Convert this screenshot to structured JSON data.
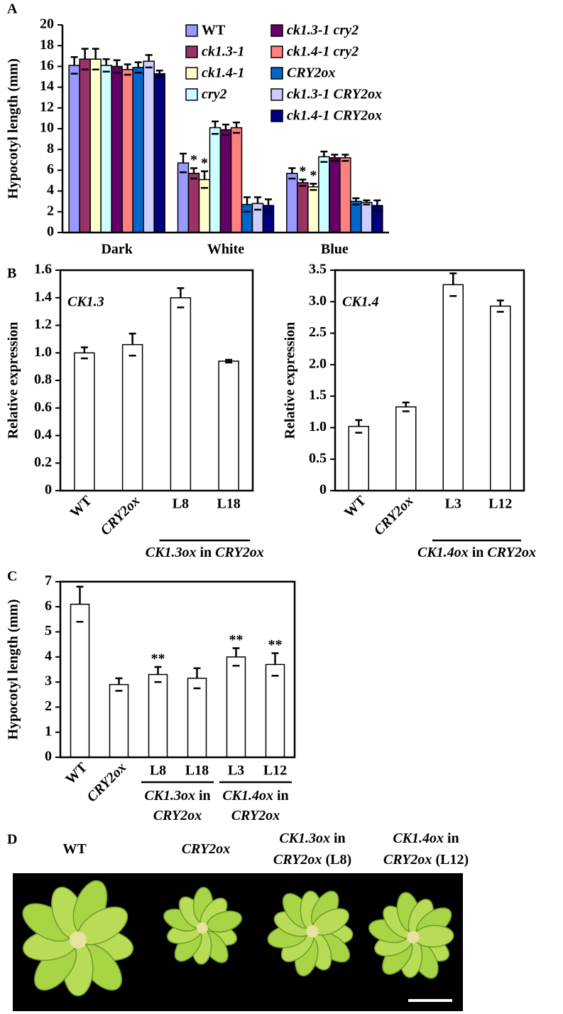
{
  "panels": [
    "A",
    "B",
    "C",
    "D"
  ],
  "chart_data": [
    {
      "type": "bar",
      "y_label": "Hypocotyl length (mm)",
      "categories": [
        "Dark",
        "White",
        "Blue"
      ],
      "ylim": [
        0,
        20
      ],
      "yticks": [
        0,
        2,
        4,
        6,
        8,
        10,
        12,
        14,
        16,
        18,
        20
      ],
      "series": [
        {
          "name": "WT",
          "italic": false,
          "color": "#9999ff",
          "values": [
            16.1,
            6.7,
            5.7
          ],
          "errors": [
            0.8,
            0.9,
            0.5
          ]
        },
        {
          "name": "ck1.3-1",
          "italic": true,
          "color": "#993366",
          "values": [
            16.7,
            5.7,
            4.8
          ],
          "errors": [
            1.0,
            0.5,
            0.3
          ],
          "significance": [
            null,
            "*",
            "*"
          ]
        },
        {
          "name": "ck1.4-1",
          "italic": true,
          "color": "#ffffcc",
          "values": [
            16.7,
            5.1,
            4.4
          ],
          "errors": [
            1.0,
            0.8,
            0.3
          ],
          "significance": [
            null,
            "*",
            "*"
          ]
        },
        {
          "name": "cry2",
          "italic": true,
          "color": "#ccffff",
          "values": [
            16.1,
            10.1,
            7.3
          ],
          "errors": [
            0.6,
            0.6,
            0.5
          ]
        },
        {
          "name": "ck1.3-1 cry2",
          "italic": true,
          "color": "#660066",
          "values": [
            16.0,
            9.9,
            7.2
          ],
          "errors": [
            0.6,
            0.5,
            0.3
          ]
        },
        {
          "name": "ck1.4-1 cry2",
          "italic": true,
          "color": "#ff8080",
          "values": [
            15.7,
            10.1,
            7.2
          ],
          "errors": [
            0.5,
            0.5,
            0.3
          ]
        },
        {
          "name": "CRY2ox",
          "italic": true,
          "color": "#0066cc",
          "values": [
            15.9,
            2.7,
            3.0
          ],
          "errors": [
            0.5,
            0.7,
            0.3
          ]
        },
        {
          "name": "ck1.3-1 CRY2ox",
          "italic": true,
          "color": "#ccccff",
          "values": [
            16.5,
            2.8,
            2.9
          ],
          "errors": [
            0.6,
            0.6,
            0.2
          ]
        },
        {
          "name": "ck1.4-1 CRY2ox",
          "italic": true,
          "color": "#000080",
          "values": [
            15.3,
            2.6,
            2.6
          ],
          "errors": [
            0.3,
            0.6,
            0.5
          ]
        }
      ]
    },
    {
      "type": "bar",
      "y_label": "Relative expression",
      "inner_label": "CK1.3",
      "categories": [
        "WT",
        "CRY2ox",
        "L8",
        "L18"
      ],
      "category_italic": [
        false,
        true,
        false,
        false
      ],
      "values": [
        1.0,
        1.06,
        1.4,
        0.94
      ],
      "errors": [
        0.04,
        0.08,
        0.07,
        0.01
      ],
      "color": "#ffffff",
      "ylim": [
        0,
        1.6
      ],
      "yticks": [
        0,
        0.2,
        0.4,
        0.6,
        0.8,
        {
          "value": 1,
          "label": "1.0"
        },
        1.2,
        1.4,
        1.6
      ],
      "groups": [
        {
          "label": [
            [
              {
                "text": "CK1.3ox",
                "italic": true
              },
              {
                "text": "in",
                "italic": false
              },
              {
                "text": "CRY2ox",
                "italic": true
              }
            ]
          ]
        }
      ]
    },
    {
      "type": "bar",
      "y_label": "Relative expression",
      "inner_label": "CK1.4",
      "categories": [
        "WT",
        "CRY2ox",
        "L3",
        "L12"
      ],
      "category_italic": [
        false,
        true,
        false,
        false
      ],
      "values": [
        1.02,
        1.33,
        3.27,
        2.93
      ],
      "errors": [
        0.1,
        0.07,
        0.18,
        0.09
      ],
      "color": "#ffffff",
      "ylim": [
        0,
        3.5
      ],
      "yticks": [
        0,
        0.5,
        {
          "value": 1,
          "label": "1.0"
        },
        1.5,
        {
          "value": 2,
          "label": "2.0"
        },
        2.5,
        {
          "value": 3,
          "label": "3.0"
        },
        3.5
      ],
      "groups": [
        {
          "label": [
            [
              {
                "text": "CK1.4ox",
                "italic": true
              },
              {
                "text": "in",
                "italic": false
              },
              {
                "text": "CRY2ox",
                "italic": true
              }
            ]
          ]
        }
      ]
    },
    {
      "type": "bar",
      "y_label": "Hypocotyl length (mm)",
      "categories": [
        "WT",
        "CRY2ox",
        "L8",
        "L18",
        "L3",
        "L12"
      ],
      "category_italic": [
        false,
        true,
        false,
        false,
        false,
        false
      ],
      "values": [
        6.1,
        2.9,
        3.3,
        3.15,
        4.0,
        3.7
      ],
      "errors": [
        0.7,
        0.25,
        0.3,
        0.4,
        0.35,
        0.45
      ],
      "color": "#ffffff",
      "significance": [
        null,
        null,
        "**",
        null,
        "**",
        "**"
      ],
      "ylim": [
        0,
        7
      ],
      "yticks": [
        0,
        1,
        2,
        3,
        4,
        5,
        6,
        7
      ],
      "groups": [
        {
          "label": [
            [
              {
                "text": "CK1.3ox",
                "italic": true
              },
              {
                "text": "in",
                "italic": false
              }
            ],
            [
              {
                "text": "CRY2ox",
                "italic": true
              }
            ]
          ]
        },
        {
          "label": [
            [
              {
                "text": "CK1.4ox",
                "italic": true
              },
              {
                "text": "in",
                "italic": false
              }
            ],
            [
              {
                "text": "CRY2ox",
                "italic": true
              }
            ]
          ]
        }
      ]
    }
  ],
  "photo": {
    "labels": [
      [
        [
          {
            "text": "WT",
            "italic": false
          }
        ]
      ],
      [
        [
          {
            "text": "CRY2ox",
            "italic": true
          }
        ]
      ],
      [
        [
          {
            "text": "CK1.3ox",
            "italic": true
          },
          {
            "text": "in",
            "italic": false
          }
        ],
        [
          {
            "text": "CRY2ox",
            "italic": true
          },
          {
            "text": "(L8)",
            "italic": false
          }
        ]
      ],
      [
        [
          {
            "text": "CK1.4ox",
            "italic": true
          },
          {
            "text": "in",
            "italic": false
          }
        ],
        [
          {
            "text": "CRY2ox",
            "italic": true
          },
          {
            "text": "(L12)",
            "italic": false
          }
        ]
      ]
    ]
  }
}
